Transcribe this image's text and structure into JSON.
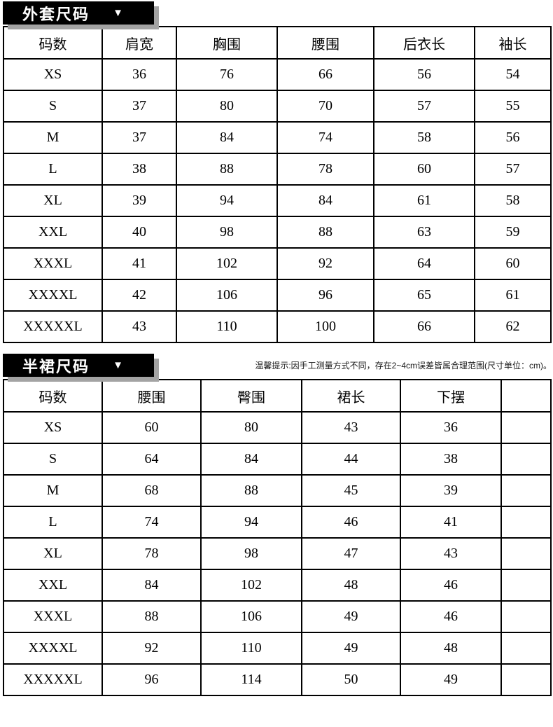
{
  "note": "温馨提示:因手工测量方式不同，存在2~4cm误差皆属合理范围(尺寸单位：cm)。",
  "icons": {
    "caret_down": "▼"
  },
  "colors": {
    "banner_bg": "#000000",
    "banner_text": "#ffffff",
    "banner_shadow": "#a3a3a3",
    "table_border": "#000000",
    "text": "#000000",
    "background": "#ffffff"
  },
  "chart_data": [
    {
      "type": "table",
      "title": "外套尺码",
      "columns": [
        "码数",
        "肩宽",
        "胸围",
        "腰围",
        "后衣长",
        "袖长"
      ],
      "rows": [
        [
          "XS",
          "36",
          "76",
          "66",
          "56",
          "54"
        ],
        [
          "S",
          "37",
          "80",
          "70",
          "57",
          "55"
        ],
        [
          "M",
          "37",
          "84",
          "74",
          "58",
          "56"
        ],
        [
          "L",
          "38",
          "88",
          "78",
          "60",
          "57"
        ],
        [
          "XL",
          "39",
          "94",
          "84",
          "61",
          "58"
        ],
        [
          "XXL",
          "40",
          "98",
          "88",
          "63",
          "59"
        ],
        [
          "XXXL",
          "41",
          "102",
          "92",
          "64",
          "60"
        ],
        [
          "XXXXL",
          "42",
          "106",
          "96",
          "65",
          "61"
        ],
        [
          "XXXXXL",
          "43",
          "110",
          "100",
          "66",
          "62"
        ]
      ]
    },
    {
      "type": "table",
      "title": "半裙尺码",
      "columns": [
        "码数",
        "腰围",
        "臀围",
        "裙长",
        "下摆",
        ""
      ],
      "rows": [
        [
          "XS",
          "60",
          "80",
          "43",
          "36",
          ""
        ],
        [
          "S",
          "64",
          "84",
          "44",
          "38",
          ""
        ],
        [
          "M",
          "68",
          "88",
          "45",
          "39",
          ""
        ],
        [
          "L",
          "74",
          "94",
          "46",
          "41",
          ""
        ],
        [
          "XL",
          "78",
          "98",
          "47",
          "43",
          ""
        ],
        [
          "XXL",
          "84",
          "102",
          "48",
          "46",
          ""
        ],
        [
          "XXXL",
          "88",
          "106",
          "49",
          "46",
          ""
        ],
        [
          "XXXXL",
          "92",
          "110",
          "49",
          "48",
          ""
        ],
        [
          "XXXXXL",
          "96",
          "114",
          "50",
          "49",
          ""
        ]
      ]
    }
  ]
}
